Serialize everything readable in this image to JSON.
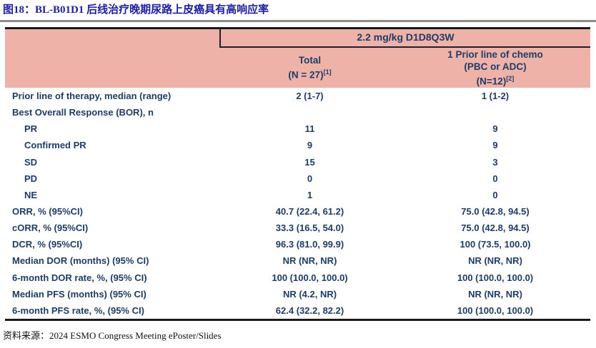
{
  "title": "图18：BL-B01D1 后线治疗晚期尿路上皮癌具有高响应率",
  "colors": {
    "title": "#1E1EA0",
    "header_bg": "#EEB2A9",
    "table_text": "#1F3C67",
    "rule_gray": "#8C8C8C",
    "border_dark": "#1A1A1A"
  },
  "table": {
    "header": {
      "group_label": "2.2 mg/kg D1D8Q3W",
      "total": {
        "line1": "Total",
        "line2_main": "(N = 27)",
        "line2_sup": "[1]"
      },
      "prior": {
        "line1": "1 Prior line of chemo",
        "line2": "(PBC or ADC)",
        "line3_main": "(N=12)",
        "line3_sup": "[2]"
      }
    },
    "rows": [
      {
        "label": "Prior line of therapy, median (range)",
        "indent": false,
        "total": "2 (1-7)",
        "prior": "1 (1-2)"
      },
      {
        "label": "Best Overall Response (BOR), n",
        "indent": false,
        "total": "",
        "prior": ""
      },
      {
        "label": "PR",
        "indent": true,
        "total": "11",
        "prior": "9"
      },
      {
        "label": "Confirmed PR",
        "indent": true,
        "total": "9",
        "prior": "9"
      },
      {
        "label": "SD",
        "indent": true,
        "total": "15",
        "prior": "3"
      },
      {
        "label": "PD",
        "indent": true,
        "total": "0",
        "prior": "0"
      },
      {
        "label": "NE",
        "indent": true,
        "total": "1",
        "prior": "0"
      },
      {
        "label": "ORR, % (95%CI)",
        "indent": false,
        "total": "40.7 (22.4, 61.2)",
        "prior": "75.0 (42.8, 94.5)"
      },
      {
        "label": "cORR, % (95%CI)",
        "indent": false,
        "total": "33.3 (16.5, 54.0)",
        "prior": "75.0 (42.8, 94.5)"
      },
      {
        "label": "DCR, % (95%CI)",
        "indent": false,
        "total": "96.3 (81.0, 99.9)",
        "prior": "100 (73.5, 100.0)"
      },
      {
        "label": "Median DOR (months) (95% CI)",
        "indent": false,
        "total": "NR (NR, NR)",
        "prior": "NR (NR, NR)"
      },
      {
        "label": "6-month DOR rate, %, (95% CI)",
        "indent": false,
        "total": "100 (100.0, 100.0)",
        "prior": "100 (100.0, 100.0)"
      },
      {
        "label": "Median PFS (months) (95% CI)",
        "indent": false,
        "total": "NR (4.2, NR)",
        "prior": "NR (NR, NR)"
      },
      {
        "label": "6-month PFS rate, %, (95% CI)",
        "indent": false,
        "total": "62.4 (32.2, 82.2)",
        "prior": "100 (100.0, 100.0)"
      }
    ]
  },
  "footer": {
    "source_label": "资料来源：",
    "source_text": "2024 ESMO Congress Meeting ePoster/Slides"
  }
}
